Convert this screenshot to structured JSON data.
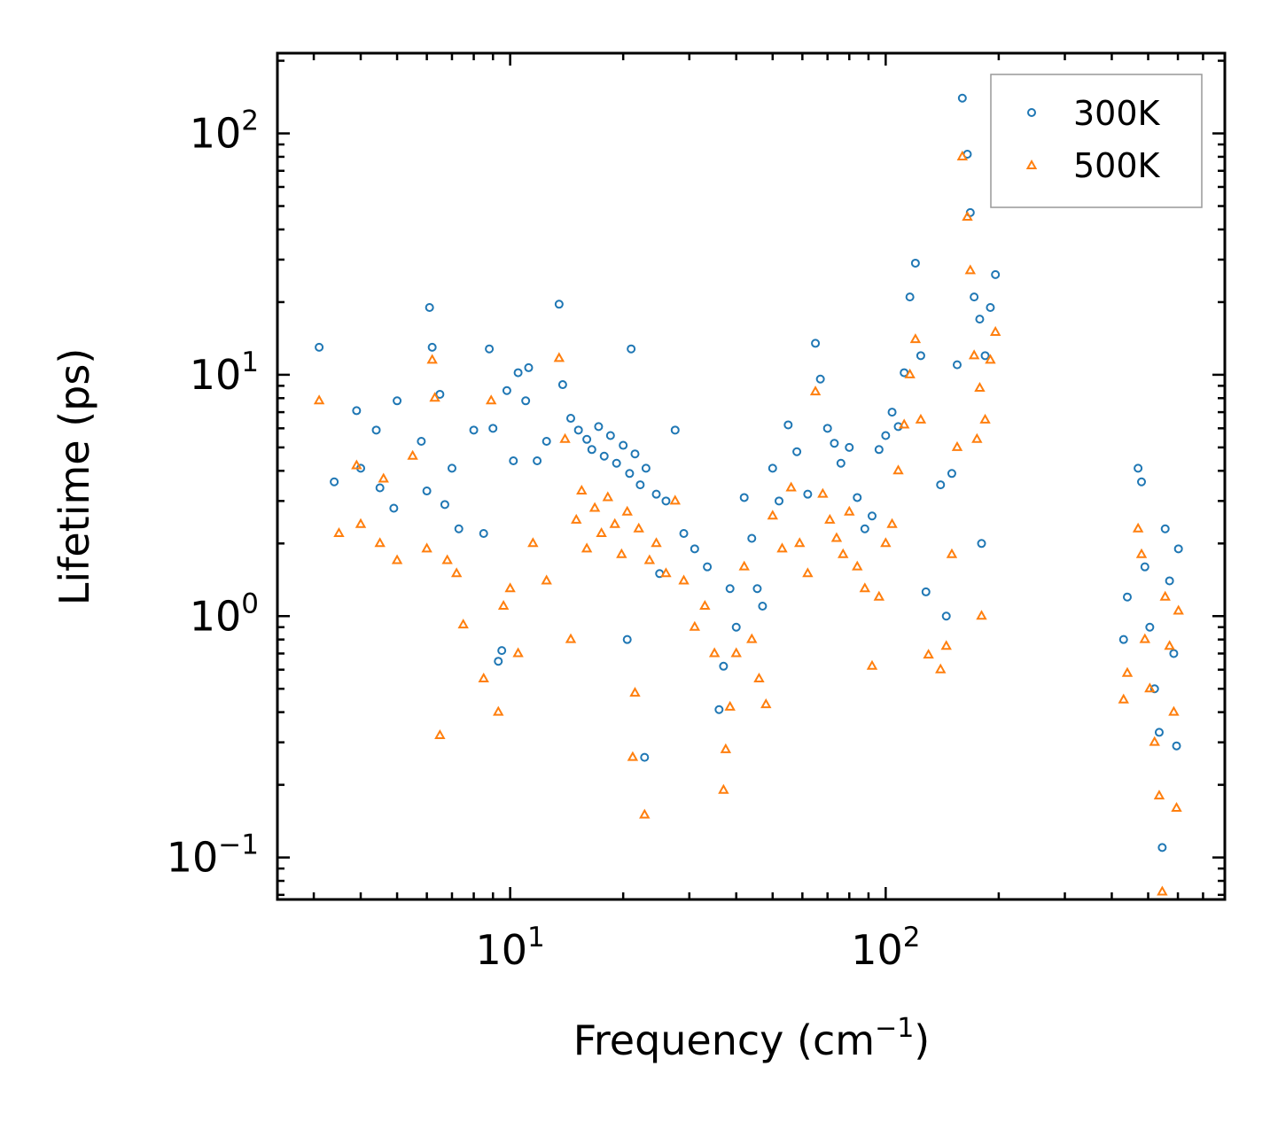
{
  "chart_data": {
    "type": "scatter",
    "title": "",
    "xlabel": "Frequency (cm",
    "xlabel_sup": "−1",
    "xlabel_close": ")",
    "ylabel": "Lifetime (ps)",
    "xscale": "log",
    "yscale": "log",
    "xlim": [
      2.4,
      800
    ],
    "ylim": [
      0.067,
      215
    ],
    "x_ticks": [
      {
        "value": 10,
        "base": "10",
        "exp": "1"
      },
      {
        "value": 100,
        "base": "10",
        "exp": "2"
      }
    ],
    "y_ticks": [
      {
        "value": 0.1,
        "base": "10",
        "exp": "−1"
      },
      {
        "value": 1,
        "base": "10",
        "exp": "0"
      },
      {
        "value": 10,
        "base": "10",
        "exp": "1"
      },
      {
        "value": 100,
        "base": "10",
        "exp": "2"
      }
    ],
    "legend_position": "top-right",
    "grid": false,
    "series": [
      {
        "name": "300K",
        "marker": "circle",
        "color": "#1f77b4",
        "points": [
          [
            3.1,
            13.0
          ],
          [
            3.4,
            3.6
          ],
          [
            3.9,
            7.1
          ],
          [
            4.0,
            4.1
          ],
          [
            4.4,
            5.9
          ],
          [
            4.5,
            3.4
          ],
          [
            4.9,
            2.8
          ],
          [
            5.0,
            7.8
          ],
          [
            5.8,
            5.3
          ],
          [
            6.0,
            3.3
          ],
          [
            6.1,
            19.0
          ],
          [
            6.2,
            13.0
          ],
          [
            6.5,
            8.3
          ],
          [
            6.7,
            2.9
          ],
          [
            7.0,
            4.1
          ],
          [
            7.3,
            2.3
          ],
          [
            8.0,
            5.9
          ],
          [
            8.5,
            2.2
          ],
          [
            8.8,
            12.8
          ],
          [
            9.0,
            6.0
          ],
          [
            9.3,
            0.65
          ],
          [
            9.5,
            0.72
          ],
          [
            9.8,
            8.6
          ],
          [
            10.2,
            4.4
          ],
          [
            10.5,
            10.2
          ],
          [
            11.0,
            7.8
          ],
          [
            11.2,
            10.7
          ],
          [
            11.8,
            4.4
          ],
          [
            12.5,
            5.3
          ],
          [
            13.5,
            19.6
          ],
          [
            13.8,
            9.1
          ],
          [
            14.5,
            6.6
          ],
          [
            15.2,
            5.9
          ],
          [
            16.0,
            5.4
          ],
          [
            16.5,
            4.9
          ],
          [
            17.2,
            6.1
          ],
          [
            17.8,
            4.6
          ],
          [
            18.5,
            5.6
          ],
          [
            19.2,
            4.3
          ],
          [
            20.0,
            5.1
          ],
          [
            20.8,
            3.9
          ],
          [
            21.5,
            4.7
          ],
          [
            22.2,
            3.5
          ],
          [
            23.0,
            4.1
          ],
          [
            24.5,
            3.2
          ],
          [
            26.0,
            3.0
          ],
          [
            27.5,
            5.9
          ],
          [
            29.0,
            2.2
          ],
          [
            21.0,
            12.8
          ],
          [
            22.8,
            0.26
          ],
          [
            20.5,
            0.8
          ],
          [
            25.0,
            1.5
          ],
          [
            31.0,
            1.9
          ],
          [
            33.5,
            1.6
          ],
          [
            36.0,
            0.41
          ],
          [
            37.0,
            0.62
          ],
          [
            38.5,
            1.3
          ],
          [
            40.0,
            0.9
          ],
          [
            42.0,
            3.1
          ],
          [
            44.0,
            2.1
          ],
          [
            45.5,
            1.3
          ],
          [
            47.0,
            1.1
          ],
          [
            50.0,
            4.1
          ],
          [
            52.0,
            3.0
          ],
          [
            55.0,
            6.2
          ],
          [
            58.0,
            4.8
          ],
          [
            62.0,
            3.2
          ],
          [
            65.0,
            13.5
          ],
          [
            67.0,
            9.6
          ],
          [
            70.0,
            6.0
          ],
          [
            73.0,
            5.2
          ],
          [
            76.0,
            4.3
          ],
          [
            80.0,
            5.0
          ],
          [
            84.0,
            3.1
          ],
          [
            88.0,
            2.3
          ],
          [
            92.0,
            2.6
          ],
          [
            96.0,
            4.9
          ],
          [
            100.0,
            5.6
          ],
          [
            104.0,
            7.0
          ],
          [
            108.0,
            6.1
          ],
          [
            112.0,
            10.2
          ],
          [
            116.0,
            21.0
          ],
          [
            120.0,
            29.0
          ],
          [
            124.0,
            12.0
          ],
          [
            128.0,
            1.26
          ],
          [
            140.0,
            3.5
          ],
          [
            145.0,
            1.0
          ],
          [
            150.0,
            3.9
          ],
          [
            155.0,
            11.0
          ],
          [
            160.0,
            140.0
          ],
          [
            165.0,
            82.0
          ],
          [
            168.0,
            47.0
          ],
          [
            172.0,
            21.0
          ],
          [
            178.0,
            17.0
          ],
          [
            184.0,
            12.0
          ],
          [
            190.0,
            19.0
          ],
          [
            196.0,
            26.0
          ],
          [
            180.0,
            2.0
          ],
          [
            430.0,
            0.8
          ],
          [
            440.0,
            1.2
          ],
          [
            470.0,
            4.1
          ],
          [
            480.0,
            3.6
          ],
          [
            490.0,
            1.6
          ],
          [
            505.0,
            0.9
          ],
          [
            520.0,
            0.5
          ],
          [
            535.0,
            0.33
          ],
          [
            545.0,
            0.11
          ],
          [
            555.0,
            2.3
          ],
          [
            570.0,
            1.4
          ],
          [
            585.0,
            0.7
          ],
          [
            595.0,
            0.29
          ],
          [
            602.0,
            1.9
          ]
        ]
      },
      {
        "name": "500K",
        "marker": "triangle",
        "color": "#ff7f0e",
        "points": [
          [
            3.1,
            7.8
          ],
          [
            3.5,
            2.2
          ],
          [
            3.9,
            4.2
          ],
          [
            4.0,
            2.4
          ],
          [
            4.5,
            2.0
          ],
          [
            4.6,
            3.7
          ],
          [
            5.0,
            1.7
          ],
          [
            5.5,
            4.6
          ],
          [
            6.0,
            1.9
          ],
          [
            6.2,
            11.5
          ],
          [
            6.3,
            8.0
          ],
          [
            6.5,
            0.32
          ],
          [
            6.8,
            1.7
          ],
          [
            7.2,
            1.5
          ],
          [
            7.5,
            0.92
          ],
          [
            8.5,
            0.55
          ],
          [
            8.9,
            7.8
          ],
          [
            9.3,
            0.4
          ],
          [
            9.6,
            1.1
          ],
          [
            10.0,
            1.3
          ],
          [
            10.5,
            0.7
          ],
          [
            11.5,
            2.0
          ],
          [
            12.5,
            1.4
          ],
          [
            13.5,
            11.7
          ],
          [
            14.0,
            5.4
          ],
          [
            14.5,
            0.8
          ],
          [
            15.0,
            2.5
          ],
          [
            15.5,
            3.3
          ],
          [
            16.0,
            1.9
          ],
          [
            16.8,
            2.8
          ],
          [
            17.5,
            2.2
          ],
          [
            18.2,
            3.1
          ],
          [
            19.0,
            2.4
          ],
          [
            19.8,
            1.8
          ],
          [
            20.5,
            2.7
          ],
          [
            21.2,
            0.26
          ],
          [
            21.5,
            0.48
          ],
          [
            22.0,
            2.3
          ],
          [
            22.8,
            0.15
          ],
          [
            23.5,
            1.7
          ],
          [
            24.5,
            2.0
          ],
          [
            26.0,
            1.5
          ],
          [
            27.5,
            3.0
          ],
          [
            29.0,
            1.4
          ],
          [
            31.0,
            0.9
          ],
          [
            33.0,
            1.1
          ],
          [
            35.0,
            0.7
          ],
          [
            37.0,
            0.19
          ],
          [
            37.5,
            0.28
          ],
          [
            38.5,
            0.42
          ],
          [
            40.0,
            0.7
          ],
          [
            42.0,
            1.6
          ],
          [
            44.0,
            0.8
          ],
          [
            46.0,
            0.55
          ],
          [
            48.0,
            0.43
          ],
          [
            50.0,
            2.6
          ],
          [
            53.0,
            1.9
          ],
          [
            56.0,
            3.4
          ],
          [
            59.0,
            2.0
          ],
          [
            62.0,
            1.5
          ],
          [
            65.0,
            8.5
          ],
          [
            68.0,
            3.2
          ],
          [
            71.0,
            2.5
          ],
          [
            74.0,
            2.1
          ],
          [
            77.0,
            1.8
          ],
          [
            80.0,
            2.7
          ],
          [
            84.0,
            1.6
          ],
          [
            88.0,
            1.3
          ],
          [
            92.0,
            0.62
          ],
          [
            96.0,
            1.2
          ],
          [
            100.0,
            2.0
          ],
          [
            104.0,
            2.4
          ],
          [
            108.0,
            4.0
          ],
          [
            112.0,
            6.2
          ],
          [
            116.0,
            10.0
          ],
          [
            120.0,
            14.0
          ],
          [
            124.0,
            6.5
          ],
          [
            130.0,
            0.69
          ],
          [
            140.0,
            0.6
          ],
          [
            145.0,
            0.75
          ],
          [
            150.0,
            1.8
          ],
          [
            155.0,
            5.0
          ],
          [
            160.0,
            80.0
          ],
          [
            165.0,
            45.0
          ],
          [
            168.0,
            27.0
          ],
          [
            172.0,
            12.0
          ],
          [
            178.0,
            8.8
          ],
          [
            184.0,
            6.5
          ],
          [
            190.0,
            11.5
          ],
          [
            196.0,
            15.0
          ],
          [
            175.0,
            5.4
          ],
          [
            180.0,
            1.0
          ],
          [
            430.0,
            0.45
          ],
          [
            440.0,
            0.58
          ],
          [
            470.0,
            2.3
          ],
          [
            480.0,
            1.8
          ],
          [
            490.0,
            0.8
          ],
          [
            505.0,
            0.5
          ],
          [
            520.0,
            0.3
          ],
          [
            535.0,
            0.18
          ],
          [
            545.0,
            0.072
          ],
          [
            555.0,
            1.2
          ],
          [
            570.0,
            0.75
          ],
          [
            585.0,
            0.4
          ],
          [
            595.0,
            0.16
          ],
          [
            602.0,
            1.05
          ]
        ]
      }
    ]
  }
}
